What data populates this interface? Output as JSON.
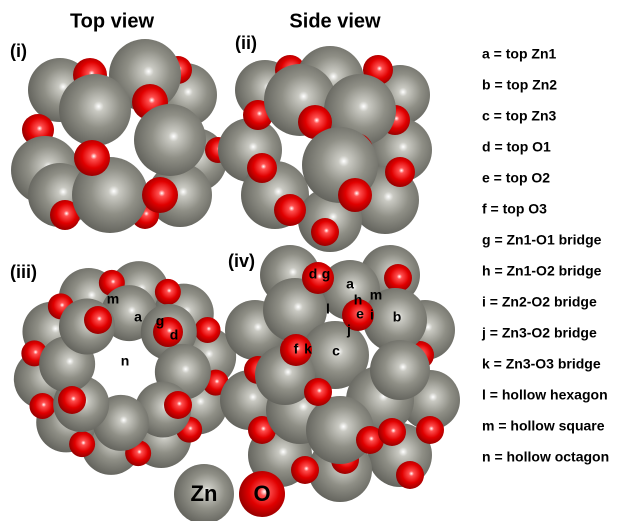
{
  "headers": [
    "Top view",
    "Side view"
  ],
  "panels": [
    {
      "label": "(i)"
    },
    {
      "label": "(ii)"
    },
    {
      "label": "(iii)",
      "sites": [
        "m",
        "a",
        "g",
        "d",
        "n"
      ]
    },
    {
      "label": "(iv)",
      "sites": [
        "d",
        "g",
        "a",
        "h",
        "m",
        "e",
        "i",
        "l",
        "b",
        "j",
        "f",
        "k",
        "c"
      ]
    }
  ],
  "definitions": [
    "a = top Zn1",
    "b = top Zn2",
    "c = top Zn3",
    "d = top O1",
    "e = top O2",
    "f = top O3",
    "g = Zn1-O1 bridge",
    "h = Zn1-O2 bridge",
    "i = Zn2-O2 bridge",
    "j = Zn3-O2 bridge",
    "k = Zn3-O3 bridge",
    "l = hollow hexagon",
    "m = hollow square",
    "n = hollow octagon"
  ],
  "key": [
    "Zn",
    "O"
  ]
}
